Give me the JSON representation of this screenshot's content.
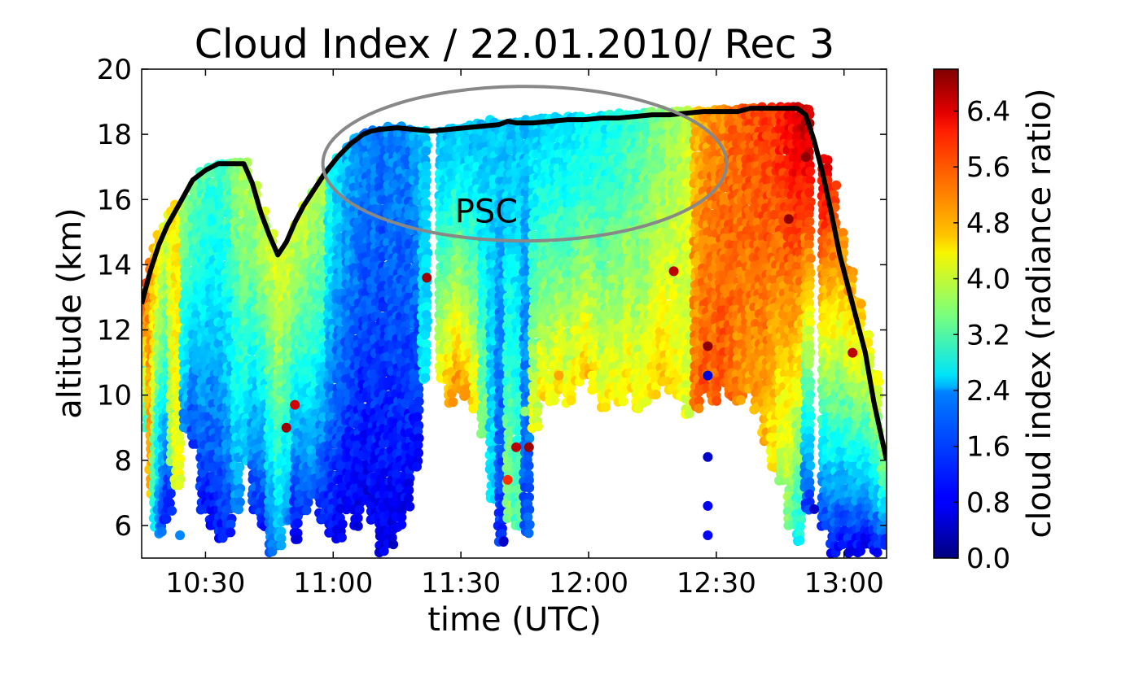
{
  "chart_data": {
    "type": "scatter",
    "title": "Cloud Index / 22.01.2010/ Rec 3",
    "xlabel": "time (UTC)",
    "ylabel": "altitude (km)",
    "xlim": [
      "10:15",
      "13:10"
    ],
    "ylim": [
      5,
      20
    ],
    "x_ticks": [
      "10:30",
      "11:00",
      "11:30",
      "12:00",
      "12:30",
      "13:00"
    ],
    "y_ticks": [
      6,
      8,
      10,
      12,
      14,
      16,
      18,
      20
    ],
    "grid": false,
    "colorbar": {
      "label": "cloud index (radiance ratio)",
      "range": [
        0,
        7
      ],
      "ticks": [
        "0.0",
        "0.8",
        "1.6",
        "2.4",
        "3.2",
        "4.0",
        "4.8",
        "5.6",
        "6.4"
      ],
      "colormap": "jet"
    },
    "annotation": {
      "text": "PSC",
      "x": "11:36",
      "y": 15.3
    },
    "ellipse_region": {
      "center_x": "11:45",
      "center_y": 17.1,
      "label": "PSC",
      "color": "#888888"
    },
    "flight_altitude_line": {
      "color": "#000000",
      "x": [
        "10:15",
        "10:17",
        "10:19",
        "10:21",
        "10:24",
        "10:27",
        "10:30",
        "10:33",
        "10:36",
        "10:39",
        "10:41",
        "10:43",
        "10:45",
        "10:47",
        "10:49",
        "10:51",
        "10:53",
        "10:55",
        "10:58",
        "11:01",
        "11:04",
        "11:07",
        "11:09",
        "11:11",
        "11:15",
        "11:19",
        "11:23",
        "11:27",
        "11:31",
        "11:35",
        "11:39",
        "11:41",
        "11:43",
        "11:47",
        "11:51",
        "11:55",
        "11:59",
        "12:03",
        "12:07",
        "12:11",
        "12:15",
        "12:19",
        "12:23",
        "12:27",
        "12:31",
        "12:35",
        "12:38",
        "12:41",
        "12:45",
        "12:49",
        "12:51",
        "12:53",
        "12:55",
        "12:57",
        "12:59",
        "13:01",
        "13:03",
        "13:05",
        "13:07",
        "13:10"
      ],
      "y": [
        12.8,
        13.8,
        14.6,
        15.2,
        15.9,
        16.6,
        16.9,
        17.1,
        17.1,
        17.1,
        16.5,
        15.6,
        14.9,
        14.3,
        14.7,
        15.3,
        15.8,
        16.2,
        16.8,
        17.3,
        17.7,
        18.0,
        18.1,
        18.15,
        18.2,
        18.15,
        18.1,
        18.15,
        18.2,
        18.25,
        18.3,
        18.4,
        18.35,
        18.35,
        18.4,
        18.45,
        18.45,
        18.5,
        18.5,
        18.55,
        18.6,
        18.6,
        18.65,
        18.7,
        18.7,
        18.7,
        18.8,
        18.8,
        18.8,
        18.8,
        18.6,
        17.8,
        16.8,
        15.6,
        14.3,
        13.3,
        12.3,
        11.3,
        9.8,
        8.0
      ]
    },
    "series": [
      {
        "x": [
          "10:15",
          "10:16",
          "10:17",
          "10:18",
          "10:19",
          "10:20",
          "10:21",
          "10:22",
          "10:23"
        ],
        "alt_top": [
          12.8,
          13.4,
          14.1,
          14.5,
          14.9,
          15.2,
          15.5,
          15.6,
          15.8
        ],
        "alt_bottom": [
          10.5,
          9.0,
          7.0,
          6.0,
          5.8,
          6.2,
          6.5,
          8.0,
          7.2
        ],
        "index_top": [
          6.3,
          5.6,
          5.2,
          5.0,
          4.6,
          4.4,
          4.2,
          4.4,
          4.5
        ],
        "index_bottom": [
          1.4,
          3.0,
          4.8,
          2.6,
          1.6,
          1.2,
          1.0,
          3.6,
          4.2
        ]
      },
      {
        "x": [
          "10:25",
          "10:27",
          "10:29",
          "10:31",
          "10:33",
          "10:35",
          "10:37",
          "10:39"
        ],
        "alt_top": [
          16.0,
          16.5,
          16.8,
          17.0,
          17.1,
          17.1,
          17.1,
          17.1
        ],
        "alt_bottom": [
          9.0,
          8.5,
          6.5,
          6.0,
          5.6,
          5.8,
          6.5,
          8.0
        ],
        "index_top": [
          3.6,
          3.4,
          3.2,
          3.0,
          3.0,
          3.2,
          3.6,
          3.8
        ],
        "index_bottom": [
          1.8,
          1.2,
          1.0,
          0.9,
          1.0,
          1.2,
          1.8,
          2.2
        ]
      },
      {
        "x": [
          "10:41",
          "10:43",
          "10:45",
          "10:47",
          "10:49",
          "10:51",
          "10:53",
          "10:55",
          "10:57"
        ],
        "alt_top": [
          16.4,
          15.6,
          14.9,
          14.3,
          14.6,
          15.2,
          15.8,
          16.2,
          16.6
        ],
        "alt_bottom": [
          6.5,
          6.0,
          5.2,
          5.4,
          6.2,
          5.6,
          6.5,
          7.0,
          6.2
        ],
        "index_top": [
          3.8,
          4.0,
          4.0,
          4.2,
          4.1,
          4.0,
          4.0,
          3.8,
          3.8
        ],
        "index_bottom": [
          1.2,
          1.0,
          1.6,
          2.0,
          1.8,
          0.8,
          1.2,
          1.6,
          1.0
        ]
      },
      {
        "x": [
          "10:59",
          "11:01",
          "11:03",
          "11:05",
          "11:07",
          "11:09",
          "11:11",
          "11:13",
          "11:15",
          "11:17",
          "11:19",
          "11:21"
        ],
        "alt_top": [
          16.9,
          17.3,
          17.6,
          17.9,
          18.0,
          18.1,
          18.15,
          18.2,
          18.2,
          18.15,
          18.1,
          18.1
        ],
        "alt_bottom": [
          5.8,
          5.6,
          6.5,
          6.0,
          6.8,
          6.2,
          5.2,
          5.4,
          6.0,
          6.6,
          7.8,
          10.5
        ],
        "index_top": [
          2.8,
          2.4,
          2.2,
          2.0,
          1.8,
          1.8,
          1.6,
          1.8,
          1.8,
          1.8,
          2.0,
          2.2
        ],
        "index_bottom": [
          0.9,
          0.8,
          0.8,
          0.7,
          0.7,
          0.8,
          0.7,
          0.7,
          0.8,
          0.8,
          0.9,
          2.6
        ]
      },
      {
        "x": [
          "11:25",
          "11:27",
          "11:29",
          "11:31",
          "11:33",
          "11:35",
          "11:37",
          "11:39",
          "11:41",
          "11:43",
          "11:45",
          "11:47",
          "11:49",
          "11:51"
        ],
        "alt_top": [
          18.1,
          18.15,
          18.2,
          18.25,
          18.3,
          18.3,
          18.4,
          18.35,
          18.35,
          18.4,
          18.4,
          18.45,
          18.45,
          18.5
        ],
        "alt_bottom": [
          10.5,
          9.8,
          10.2,
          10.0,
          9.6,
          8.8,
          6.8,
          5.5,
          6.2,
          6.0,
          5.8,
          9.0,
          10.0,
          9.8
        ],
        "index_top": [
          2.2,
          2.2,
          2.3,
          2.2,
          2.2,
          2.2,
          2.3,
          2.3,
          2.2,
          2.2,
          2.2,
          2.3,
          2.3,
          2.4
        ],
        "index_bottom": [
          4.4,
          5.0,
          5.2,
          5.0,
          4.6,
          3.6,
          2.4,
          1.2,
          3.6,
          3.2,
          1.4,
          4.2,
          4.6,
          4.4
        ]
      },
      {
        "x": [
          "11:53",
          "11:55",
          "11:57",
          "11:59",
          "12:01",
          "12:03",
          "12:05",
          "12:07",
          "12:09",
          "12:11",
          "12:13",
          "12:15",
          "12:17",
          "12:19",
          "12:21",
          "12:23"
        ],
        "alt_top": [
          18.45,
          18.5,
          18.5,
          18.5,
          18.55,
          18.55,
          18.6,
          18.6,
          18.6,
          18.6,
          18.65,
          18.65,
          18.7,
          18.7,
          18.7,
          18.7
        ],
        "alt_bottom": [
          10.2,
          9.8,
          10.4,
          10.6,
          10.2,
          9.6,
          10.0,
          9.8,
          10.2,
          9.6,
          9.8,
          10.0,
          10.4,
          10.2,
          10.0,
          9.4
        ],
        "index_top": [
          2.4,
          2.4,
          2.5,
          2.6,
          2.6,
          2.6,
          2.8,
          2.8,
          3.0,
          3.0,
          3.2,
          3.4,
          3.4,
          3.6,
          3.8,
          4.0
        ],
        "index_bottom": [
          4.6,
          4.4,
          4.6,
          4.8,
          4.6,
          4.4,
          4.4,
          4.4,
          4.6,
          4.4,
          4.4,
          4.6,
          4.8,
          4.6,
          4.4,
          4.2
        ]
      },
      {
        "x": [
          "12:25",
          "12:27",
          "12:29",
          "12:31",
          "12:33",
          "12:35",
          "12:37",
          "12:39",
          "12:41",
          "12:43",
          "12:45",
          "12:47",
          "12:49",
          "12:51"
        ],
        "alt_top": [
          18.7,
          18.7,
          18.7,
          18.75,
          18.75,
          18.8,
          18.8,
          18.8,
          18.8,
          18.8,
          18.8,
          18.8,
          18.8,
          18.8
        ],
        "alt_bottom": [
          9.6,
          10.2,
          9.8,
          10.4,
          10.0,
          9.8,
          10.2,
          9.6,
          8.6,
          7.8,
          7.4,
          6.0,
          5.5,
          6.5
        ],
        "index_top": [
          4.8,
          5.0,
          5.2,
          5.2,
          5.4,
          5.4,
          5.6,
          5.6,
          5.8,
          5.8,
          6.0,
          6.2,
          6.4,
          6.6
        ],
        "index_bottom": [
          5.4,
          5.6,
          5.4,
          5.6,
          5.4,
          5.2,
          5.0,
          5.0,
          4.8,
          4.4,
          3.8,
          3.4,
          2.6,
          1.2
        ]
      },
      {
        "x": [
          "12:55",
          "12:57",
          "12:59",
          "13:01",
          "13:03",
          "13:05",
          "13:07",
          "13:09"
        ],
        "alt_top": [
          17.2,
          16.4,
          15.0,
          13.8,
          12.8,
          11.8,
          10.6,
          8.4
        ],
        "alt_bottom": [
          6.0,
          5.2,
          5.4,
          5.2,
          5.2,
          5.4,
          5.2,
          5.4
        ],
        "index_top": [
          6.2,
          5.8,
          5.2,
          5.0,
          4.8,
          4.4,
          4.2,
          3.8
        ],
        "index_bottom": [
          1.2,
          1.0,
          0.9,
          0.8,
          0.8,
          0.7,
          0.9,
          1.1
        ]
      }
    ],
    "outlier_points": [
      {
        "x": "11:22",
        "y": 13.6,
        "index": 6.8
      },
      {
        "x": "12:20",
        "y": 13.8,
        "index": 6.6
      },
      {
        "x": "12:28",
        "y": 11.5,
        "index": 6.9
      },
      {
        "x": "12:28",
        "y": 10.6,
        "index": 0.6
      },
      {
        "x": "12:28",
        "y": 8.1,
        "index": 0.5
      },
      {
        "x": "12:28",
        "y": 6.6,
        "index": 0.8
      },
      {
        "x": "12:28",
        "y": 5.7,
        "index": 0.9
      },
      {
        "x": "12:47",
        "y": 15.4,
        "index": 6.9
      },
      {
        "x": "12:51",
        "y": 17.3,
        "index": 6.9
      },
      {
        "x": "12:53",
        "y": 6.5,
        "index": 0.5
      },
      {
        "x": "11:53",
        "y": 10.6,
        "index": 5.0
      },
      {
        "x": "10:51",
        "y": 9.7,
        "index": 6.4
      },
      {
        "x": "10:49",
        "y": 9.0,
        "index": 6.8
      },
      {
        "x": "11:43",
        "y": 8.4,
        "index": 6.6
      },
      {
        "x": "11:41",
        "y": 7.4,
        "index": 5.8
      },
      {
        "x": "11:40",
        "y": 5.5,
        "index": 0.5
      },
      {
        "x": "11:45",
        "y": 9.5,
        "index": 3.6
      },
      {
        "x": "11:46",
        "y": 8.4,
        "index": 6.8
      },
      {
        "x": "10:24",
        "y": 5.7,
        "index": 1.8
      },
      {
        "x": "13:02",
        "y": 11.3,
        "index": 6.6
      },
      {
        "x": "13:01",
        "y": 13.2,
        "index": 5.2
      },
      {
        "x": "13:04",
        "y": 12.8,
        "index": 5.0
      }
    ]
  }
}
